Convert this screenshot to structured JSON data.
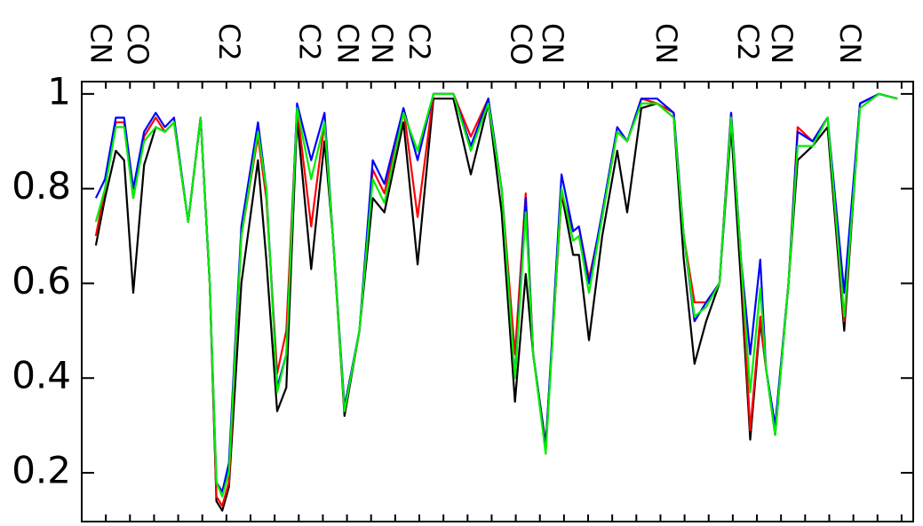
{
  "chart_data": {
    "type": "line",
    "annotations": [
      {
        "x": 2.1,
        "text": "CN"
      },
      {
        "x": 6.5,
        "text": "CO"
      },
      {
        "x": 17.5,
        "text": "C2"
      },
      {
        "x": 27.2,
        "text": "C2"
      },
      {
        "x": 31.8,
        "text": "CN"
      },
      {
        "x": 35.9,
        "text": "CN"
      },
      {
        "x": 40.4,
        "text": "C2"
      },
      {
        "x": 52.6,
        "text": "CO"
      },
      {
        "x": 56.4,
        "text": "CN"
      },
      {
        "x": 70.1,
        "text": "CN"
      },
      {
        "x": 79.9,
        "text": "C2"
      },
      {
        "x": 84.0,
        "text": "CN"
      },
      {
        "x": 92.2,
        "text": "CN"
      }
    ],
    "x": [
      1.7,
      2.8,
      4.1,
      5.1,
      6.2,
      7.5,
      8.9,
      10.0,
      11.1,
      12.8,
      14.3,
      15.4,
      16.2,
      16.9,
      17.7,
      19.2,
      21.2,
      22.2,
      23.5,
      24.6,
      25.9,
      27.6,
      29.2,
      30.2,
      31.6,
      33.4,
      35.0,
      36.4,
      38.7,
      40.4,
      42.3,
      44.7,
      46.8,
      48.9,
      50.5,
      52.1,
      53.4,
      54.3,
      55.8,
      57.7,
      59.1,
      59.8,
      61.0,
      62.6,
      64.4,
      65.6,
      67.3,
      69.2,
      71.2,
      72.4,
      73.7,
      75.1,
      76.7,
      78.1,
      79.3,
      80.4,
      81.6,
      82.3,
      83.4,
      85.0,
      86.1,
      87.9,
      89.7,
      91.7,
      93.6,
      95.9,
      98.1
    ],
    "series": [
      {
        "name": "black",
        "color": "#000000",
        "values": [
          0.68,
          0.78,
          0.88,
          0.86,
          0.58,
          0.85,
          0.93,
          0.92,
          0.94,
          0.73,
          0.95,
          0.6,
          0.14,
          0.12,
          0.17,
          0.6,
          0.86,
          0.65,
          0.33,
          0.38,
          0.95,
          0.63,
          0.9,
          0.7,
          0.32,
          0.5,
          0.78,
          0.75,
          0.94,
          0.64,
          0.99,
          0.99,
          0.83,
          0.98,
          0.75,
          0.35,
          0.62,
          0.45,
          0.26,
          0.79,
          0.66,
          0.66,
          0.48,
          0.7,
          0.88,
          0.75,
          0.97,
          0.98,
          0.95,
          0.65,
          0.43,
          0.52,
          0.6,
          0.93,
          0.6,
          0.27,
          0.52,
          0.42,
          0.28,
          0.6,
          0.86,
          0.89,
          0.93,
          0.5,
          0.98,
          1.0,
          0.99
        ]
      },
      {
        "name": "red",
        "color": "#ff0000",
        "values": [
          0.7,
          0.8,
          0.94,
          0.94,
          0.78,
          0.91,
          0.95,
          0.92,
          0.94,
          0.73,
          0.95,
          0.6,
          0.15,
          0.13,
          0.18,
          0.7,
          0.91,
          0.78,
          0.41,
          0.5,
          0.97,
          0.72,
          0.94,
          0.7,
          0.33,
          0.5,
          0.84,
          0.79,
          0.97,
          0.74,
          1.0,
          1.0,
          0.91,
          0.99,
          0.8,
          0.45,
          0.79,
          0.45,
          0.25,
          0.79,
          0.71,
          0.72,
          0.61,
          0.74,
          0.92,
          0.9,
          0.99,
          0.98,
          0.96,
          0.7,
          0.56,
          0.56,
          0.6,
          0.96,
          0.65,
          0.29,
          0.53,
          0.42,
          0.29,
          0.6,
          0.93,
          0.9,
          0.95,
          0.52,
          0.98,
          1.0,
          0.99
        ]
      },
      {
        "name": "blue",
        "color": "#0000ff",
        "values": [
          0.78,
          0.82,
          0.95,
          0.95,
          0.8,
          0.92,
          0.96,
          0.93,
          0.95,
          0.73,
          0.95,
          0.6,
          0.18,
          0.16,
          0.22,
          0.72,
          0.94,
          0.8,
          0.38,
          0.45,
          0.98,
          0.86,
          0.96,
          0.7,
          0.34,
          0.5,
          0.86,
          0.81,
          0.97,
          0.86,
          1.0,
          1.0,
          0.89,
          0.99,
          0.8,
          0.4,
          0.78,
          0.45,
          0.25,
          0.83,
          0.71,
          0.72,
          0.6,
          0.75,
          0.93,
          0.9,
          0.99,
          0.99,
          0.96,
          0.7,
          0.52,
          0.56,
          0.6,
          0.96,
          0.65,
          0.45,
          0.65,
          0.42,
          0.3,
          0.6,
          0.92,
          0.9,
          0.95,
          0.58,
          0.98,
          1.0,
          0.99
        ]
      },
      {
        "name": "green",
        "color": "#00ee00",
        "values": [
          0.73,
          0.8,
          0.93,
          0.93,
          0.78,
          0.9,
          0.93,
          0.92,
          0.94,
          0.73,
          0.95,
          0.6,
          0.18,
          0.15,
          0.2,
          0.7,
          0.92,
          0.8,
          0.37,
          0.45,
          0.97,
          0.82,
          0.94,
          0.7,
          0.33,
          0.5,
          0.82,
          0.77,
          0.96,
          0.88,
          1.0,
          1.0,
          0.88,
          0.98,
          0.8,
          0.4,
          0.75,
          0.45,
          0.24,
          0.8,
          0.69,
          0.7,
          0.58,
          0.74,
          0.92,
          0.9,
          0.98,
          0.98,
          0.95,
          0.7,
          0.53,
          0.55,
          0.6,
          0.95,
          0.65,
          0.37,
          0.59,
          0.42,
          0.28,
          0.6,
          0.89,
          0.89,
          0.95,
          0.53,
          0.97,
          1.0,
          0.99
        ]
      }
    ],
    "xlim": [
      0,
      100
    ],
    "xticks": [
      2.9,
      5.8,
      8.7,
      11.6,
      14.5,
      17.4,
      20.3,
      23.2,
      26.1,
      29.0,
      31.9,
      34.8,
      37.7,
      40.6,
      43.5,
      46.4,
      49.3,
      52.2,
      55.1,
      58.0,
      60.9,
      63.8,
      66.7,
      69.6,
      72.5,
      75.4,
      78.3,
      81.2,
      84.1,
      87.0,
      89.9,
      92.8,
      95.7,
      98.6
    ],
    "ylim": [
      0.097,
      1.026
    ],
    "yticks": [
      0.2,
      0.4,
      0.6,
      0.8,
      1
    ]
  }
}
